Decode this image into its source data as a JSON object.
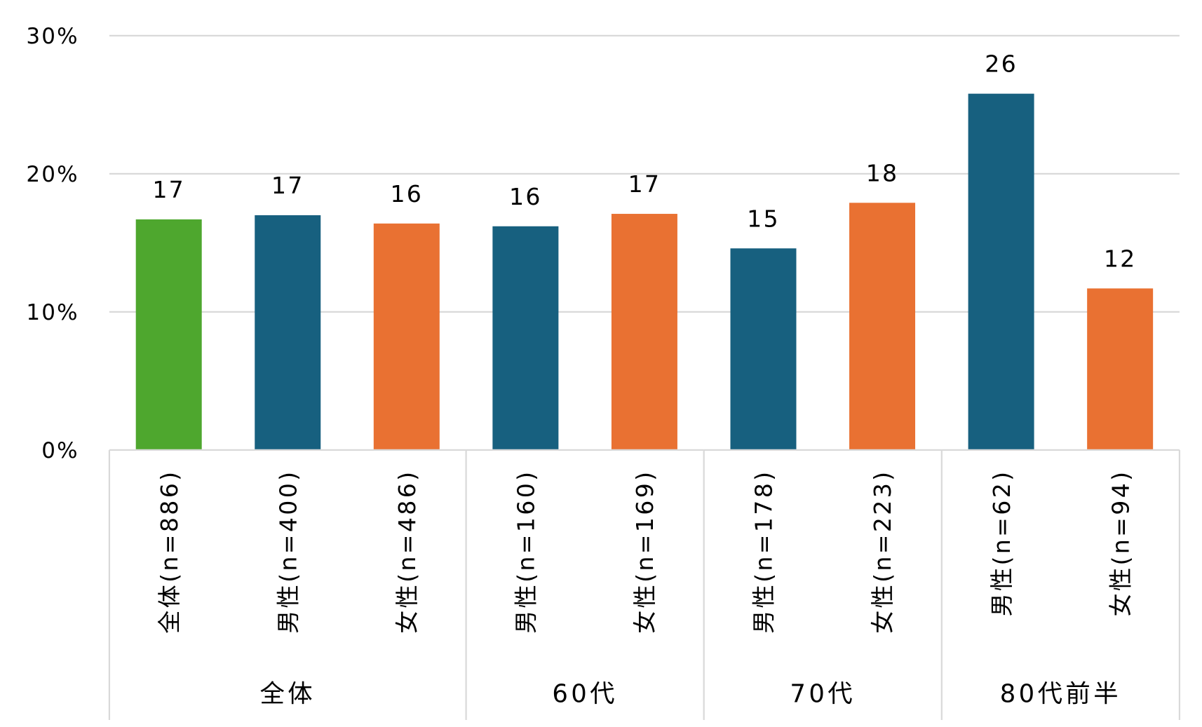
{
  "chart_data": {
    "type": "bar",
    "title": "",
    "xlabel": "",
    "ylabel": "",
    "ylim": [
      0,
      30
    ],
    "y_ticks": [
      "0%",
      "10%",
      "20%",
      "30%"
    ],
    "y_tick_values": [
      0,
      10,
      20,
      30
    ],
    "grid": true,
    "legend": "none",
    "categories": [
      "全体(n=886)",
      "男性(n=400)",
      "女性(n=486)",
      "男性(n=160)",
      "女性(n=169)",
      "男性(n=178)",
      "女性(n=223)",
      "男性(n=62)",
      "女性(n=94)"
    ],
    "values": [
      16.7,
      17.0,
      16.4,
      16.2,
      17.1,
      14.6,
      17.9,
      25.8,
      11.7
    ],
    "data_labels": [
      "17",
      "17",
      "16",
      "16",
      "17",
      "15",
      "18",
      "26",
      "12"
    ],
    "bar_colors": [
      "#4EA72E",
      "#17607F",
      "#E97132",
      "#17607F",
      "#E97132",
      "#17607F",
      "#E97132",
      "#17607F",
      "#E97132"
    ],
    "groups": [
      {
        "label": "全体",
        "count": 3
      },
      {
        "label": "60代",
        "count": 2
      },
      {
        "label": "70代",
        "count": 2
      },
      {
        "label": "80代前半",
        "count": 2
      }
    ]
  }
}
